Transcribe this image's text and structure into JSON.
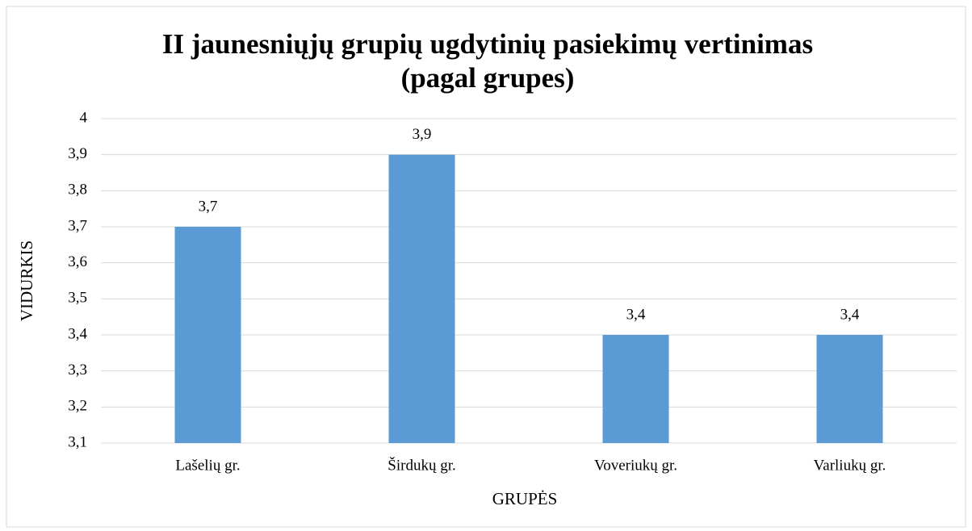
{
  "chart_data": {
    "type": "bar",
    "title": [
      "II jaunesniųjų grupių ugdytinių pasiekimų vertinimas",
      "(pagal grupes)"
    ],
    "x_label": "GRUPĖS",
    "y_label": "VIDURKIS",
    "categories": [
      "Lašelių gr.",
      "Širdukų gr.",
      "Voveriukų gr.",
      "Varliukų gr."
    ],
    "values": [
      3.7,
      3.9,
      3.4,
      3.4
    ],
    "value_labels": [
      "3,7",
      "3,9",
      "3,4",
      "3,4"
    ],
    "color": "#5b9bd5",
    "ylim": [
      3.1,
      4
    ],
    "yticks": [
      {
        "value": 3.1,
        "label": "3,1"
      },
      {
        "value": 3.2,
        "label": "3,2"
      },
      {
        "value": 3.3,
        "label": "3,3"
      },
      {
        "value": 3.4,
        "label": "3,4"
      },
      {
        "value": 3.5,
        "label": "3,5"
      },
      {
        "value": 3.6,
        "label": "3,6"
      },
      {
        "value": 3.7,
        "label": "3,7"
      },
      {
        "value": 3.8,
        "label": "3,8"
      },
      {
        "value": 3.9,
        "label": "3,9"
      },
      4
    ],
    "grid": true
  }
}
